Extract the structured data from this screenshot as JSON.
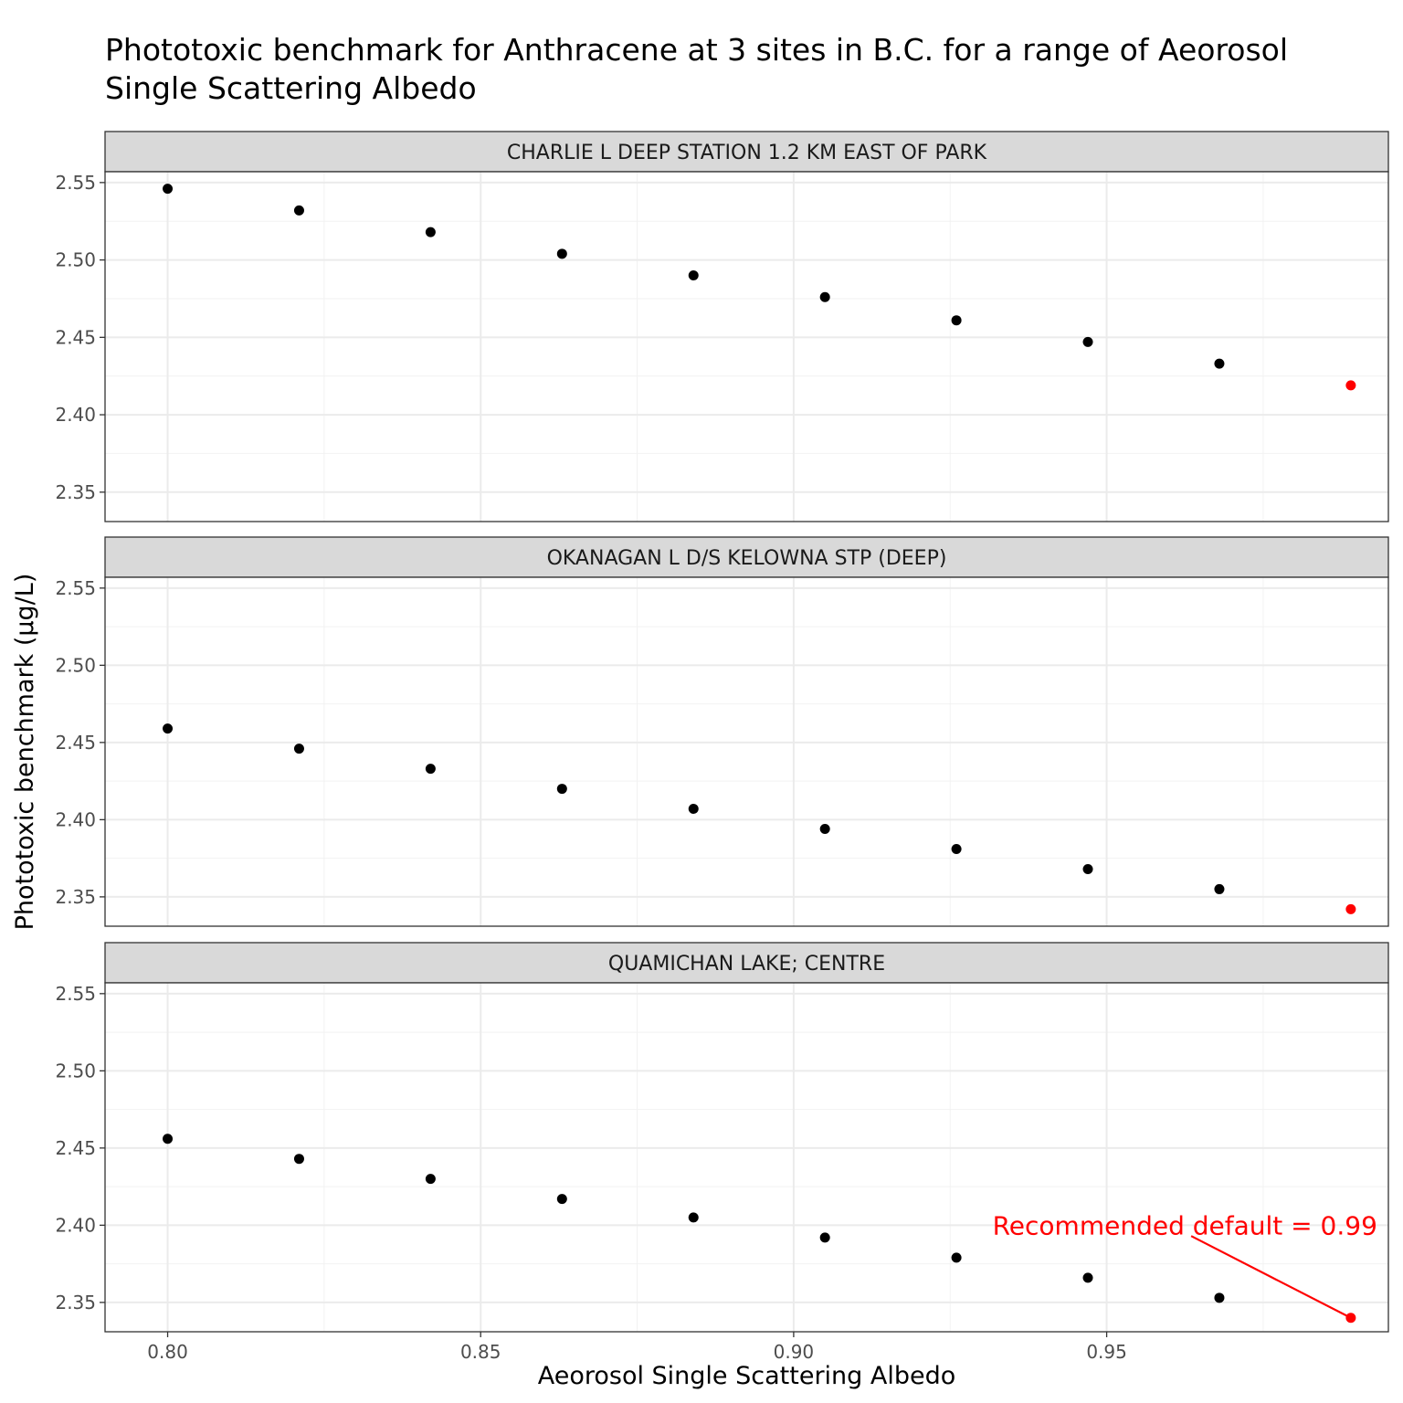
{
  "chart_data": {
    "type": "scatter",
    "title_line1": "Phototoxic benchmark for Anthracene at 3 sites in B.C. for a range of Aeorosol",
    "title_line2": "Single Scattering Albedo",
    "xlabel": "Aeorosol Single Scattering Albedo",
    "ylabel": "Phototoxic benchmark (µg/L)",
    "xlim": [
      0.79,
      0.995
    ],
    "ylim": [
      2.331,
      2.557
    ],
    "x_ticks": [
      {
        "value": 0.8,
        "label": "0.80"
      },
      {
        "value": 0.85,
        "label": "0.85"
      },
      {
        "value": 0.9,
        "label": "0.90"
      },
      {
        "value": 0.95,
        "label": "0.95"
      }
    ],
    "y_ticks": [
      {
        "value": 2.35,
        "label": "2.35"
      },
      {
        "value": 2.4,
        "label": "2.40"
      },
      {
        "value": 2.45,
        "label": "2.45"
      },
      {
        "value": 2.5,
        "label": "2.50"
      },
      {
        "value": 2.55,
        "label": "2.55"
      }
    ],
    "grid": true,
    "point_color": "#000000",
    "highlight_color": "#ff0000",
    "x": [
      0.8,
      0.821,
      0.842,
      0.863,
      0.884,
      0.905,
      0.926,
      0.947,
      0.968,
      0.989
    ],
    "highlight_index": 9,
    "panels": [
      {
        "name": "CHARLIE L DEEP STATION 1.2 KM EAST OF PARK",
        "values": [
          2.546,
          2.532,
          2.518,
          2.504,
          2.49,
          2.476,
          2.461,
          2.447,
          2.433,
          2.419
        ]
      },
      {
        "name": "OKANAGAN L D/S KELOWNA STP (DEEP)",
        "values": [
          2.459,
          2.446,
          2.433,
          2.42,
          2.407,
          2.394,
          2.381,
          2.368,
          2.355,
          2.342
        ]
      },
      {
        "name": "QUAMICHAN LAKE; CENTRE",
        "values": [
          2.456,
          2.443,
          2.43,
          2.417,
          2.405,
          2.392,
          2.379,
          2.366,
          2.353,
          2.34
        ]
      }
    ],
    "annotation": {
      "text": "Recommended default = 0.99",
      "panel_index": 2,
      "text_x": 0.9625,
      "text_y": 2.4,
      "arrow_from_x": 0.9635,
      "arrow_from_y": 2.393,
      "arrow_to_x": 0.989,
      "arrow_to_y": 2.34
    }
  }
}
